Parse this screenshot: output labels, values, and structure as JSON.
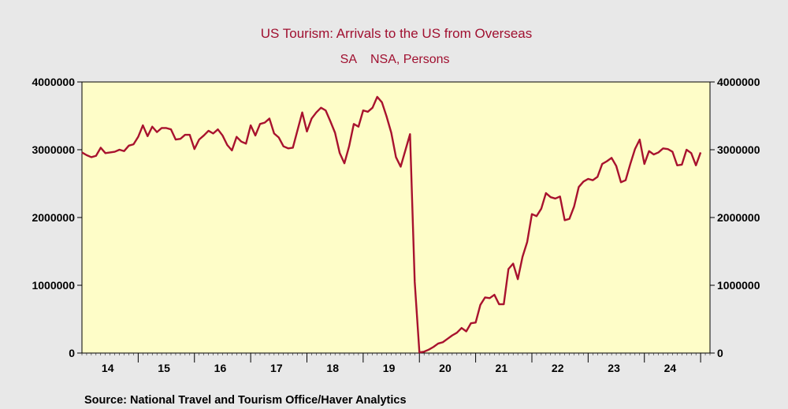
{
  "chart_data": {
    "type": "line",
    "title": "US Tourism: Arrivals to the US from Overseas",
    "subtitle_left": "SA",
    "subtitle_right": "NSA, Persons",
    "source": "Source:  National Travel and Tourism Office/Haver Analytics",
    "xlabel": "",
    "ylabel": "",
    "ylim": [
      0,
      4000000
    ],
    "y_ticks": [
      0,
      1000000,
      2000000,
      3000000,
      4000000
    ],
    "y_tick_labels": [
      "0",
      "1000000",
      "2000000",
      "3000000",
      "4000000"
    ],
    "x_tick_labels": [
      "14",
      "15",
      "16",
      "17",
      "18",
      "19",
      "20",
      "21",
      "22",
      "23",
      "24"
    ],
    "x_start_year": 2014,
    "x_end_month_index": 134,
    "right_axis": true,
    "grid": false,
    "colors": {
      "line": "#a8122e",
      "plot_background": "#fefdc8",
      "page_background": "#e8e8e8",
      "title": "#a01030"
    },
    "series": [
      {
        "values": [
          2960000,
          2920000,
          2890000,
          2910000,
          3030000,
          2950000,
          2960000,
          2970000,
          3000000,
          2980000,
          3060000,
          3080000,
          3190000,
          3360000,
          3200000,
          3340000,
          3260000,
          3320000,
          3320000,
          3300000,
          3150000,
          3160000,
          3220000,
          3220000,
          3010000,
          3150000,
          3210000,
          3280000,
          3240000,
          3300000,
          3210000,
          3070000,
          2990000,
          3190000,
          3120000,
          3090000,
          3360000,
          3210000,
          3380000,
          3400000,
          3460000,
          3240000,
          3180000,
          3050000,
          3020000,
          3030000,
          3290000,
          3550000,
          3270000,
          3460000,
          3550000,
          3620000,
          3580000,
          3420000,
          3250000,
          2950000,
          2800000,
          3050000,
          3380000,
          3340000,
          3580000,
          3560000,
          3620000,
          3780000,
          3700000,
          3490000,
          3250000,
          2890000,
          2750000,
          2990000,
          3230000,
          1050000,
          10000,
          20000,
          50000,
          90000,
          140000,
          160000,
          210000,
          260000,
          300000,
          370000,
          320000,
          440000,
          450000,
          710000,
          820000,
          810000,
          860000,
          720000,
          720000,
          1240000,
          1320000,
          1090000,
          1420000,
          1640000,
          2050000,
          2020000,
          2130000,
          2360000,
          2300000,
          2280000,
          2310000,
          1960000,
          1980000,
          2160000,
          2450000,
          2530000,
          2570000,
          2550000,
          2600000,
          2790000,
          2830000,
          2880000,
          2760000,
          2520000,
          2550000,
          2790000,
          3010000,
          3150000,
          2790000,
          2980000,
          2930000,
          2960000,
          3020000,
          3010000,
          2970000,
          2770000,
          2780000,
          3000000,
          2950000,
          2770000,
          2960000
        ]
      }
    ]
  }
}
